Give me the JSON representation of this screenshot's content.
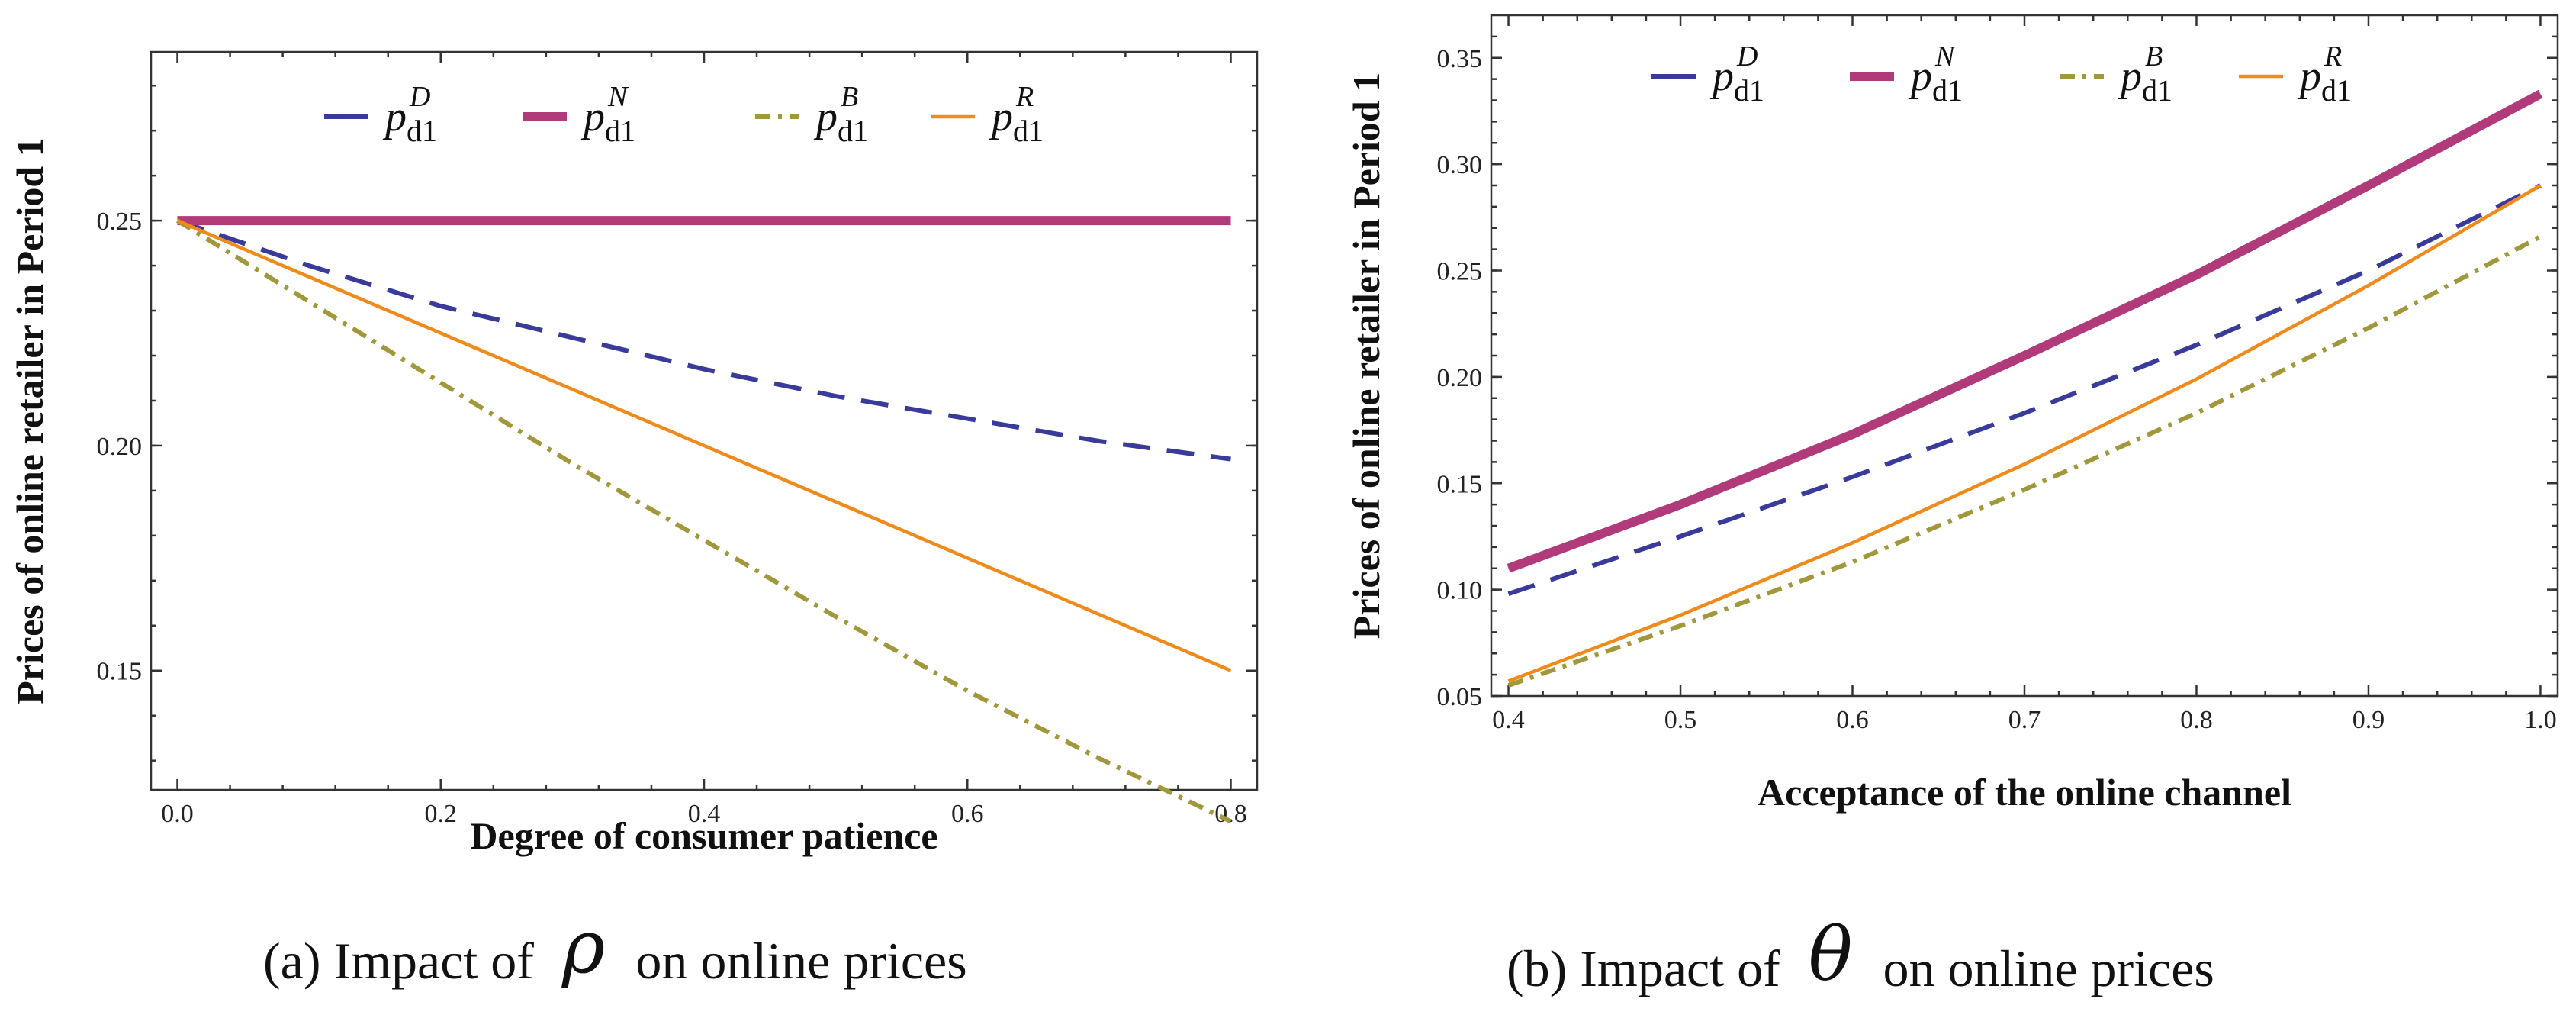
{
  "chart_data": [
    {
      "type": "line",
      "title": "",
      "xlabel": "Degree of consumer patience",
      "ylabel": "Prices of online retailer in Period 1",
      "xlim": [
        -0.02,
        0.82
      ],
      "ylim": [
        0.1235,
        0.2875
      ],
      "xticks": [
        0.0,
        0.2,
        0.4,
        0.6,
        0.8
      ],
      "xtick_labels": [
        "0.0",
        "0.2",
        "0.4",
        "0.6",
        "0.8"
      ],
      "yticks": [
        0.15,
        0.2,
        0.25
      ],
      "ytick_labels": [
        "0.15",
        "0.20",
        "0.25"
      ],
      "grid": false,
      "legend_position": "top",
      "caption_prefix": "(a) Impact of",
      "caption_symbol": "ρ",
      "caption_suffix": "on online prices",
      "series": [
        {
          "name": "p^D_d1",
          "base": "p",
          "sup": "D",
          "sub": "d1",
          "color": "#3a3a9a",
          "style": "dashed",
          "x": [
            0.0,
            0.1,
            0.2,
            0.3,
            0.4,
            0.5,
            0.6,
            0.7,
            0.8
          ],
          "y": [
            0.25,
            0.24,
            0.231,
            0.224,
            0.217,
            0.211,
            0.206,
            0.201,
            0.197
          ]
        },
        {
          "name": "p^N_d1",
          "base": "p",
          "sup": "N",
          "sub": "d1",
          "color": "#b03a7a",
          "style": "thick",
          "x": [
            0.0,
            0.8
          ],
          "y": [
            0.25,
            0.25
          ]
        },
        {
          "name": "p^B_d1",
          "base": "p",
          "sup": "B",
          "sub": "d1",
          "color": "#a0983a",
          "style": "dashdot",
          "x": [
            0.0,
            0.1,
            0.2,
            0.3,
            0.4,
            0.5,
            0.6,
            0.7,
            0.8
          ],
          "y": [
            0.25,
            0.232,
            0.214,
            0.196,
            0.179,
            0.162,
            0.1455,
            0.1305,
            0.1165
          ]
        },
        {
          "name": "p^R_d1",
          "base": "p",
          "sup": "R",
          "sub": "d1",
          "color": "#f08a1a",
          "style": "solid",
          "x": [
            0.0,
            0.8
          ],
          "y": [
            0.25,
            0.15
          ]
        }
      ]
    },
    {
      "type": "line",
      "title": "",
      "xlabel": "Acceptance of the online channel",
      "ylabel": "Prices of online retailer in Period 1",
      "xlim": [
        0.39,
        1.01
      ],
      "ylim": [
        0.05,
        0.37
      ],
      "xticks": [
        0.4,
        0.5,
        0.6,
        0.7,
        0.8,
        0.9,
        1.0
      ],
      "xtick_labels": [
        "0.4",
        "0.5",
        "0.6",
        "0.7",
        "0.8",
        "0.9",
        "1.0"
      ],
      "yticks": [
        0.05,
        0.1,
        0.15,
        0.2,
        0.25,
        0.3,
        0.35
      ],
      "ytick_labels": [
        "0.05",
        "0.10",
        "0.15",
        "0.20",
        "0.25",
        "0.30",
        "0.35"
      ],
      "grid": false,
      "legend_position": "top",
      "caption_prefix": "(b) Impact of",
      "caption_symbol": "θ",
      "caption_suffix": "on online prices",
      "series": [
        {
          "name": "p^D_d1",
          "base": "p",
          "sup": "D",
          "sub": "d1",
          "color": "#3a3a9a",
          "style": "dashed",
          "x": [
            0.4,
            0.5,
            0.6,
            0.7,
            0.8,
            0.9,
            1.0
          ],
          "y": [
            0.098,
            0.125,
            0.153,
            0.183,
            0.215,
            0.25,
            0.29
          ]
        },
        {
          "name": "p^N_d1",
          "base": "p",
          "sup": "N",
          "sub": "d1",
          "color": "#b03a7a",
          "style": "thick",
          "x": [
            0.4,
            0.5,
            0.6,
            0.7,
            0.8,
            0.9,
            1.0
          ],
          "y": [
            0.11,
            0.14,
            0.173,
            0.21,
            0.248,
            0.29,
            0.333
          ]
        },
        {
          "name": "p^B_d1",
          "base": "p",
          "sup": "B",
          "sub": "d1",
          "color": "#a0983a",
          "style": "dashdot",
          "x": [
            0.4,
            0.5,
            0.6,
            0.7,
            0.8,
            0.9,
            1.0
          ],
          "y": [
            0.055,
            0.083,
            0.113,
            0.147,
            0.183,
            0.223,
            0.266
          ]
        },
        {
          "name": "p^R_d1",
          "base": "p",
          "sup": "R",
          "sub": "d1",
          "color": "#f08a1a",
          "style": "solid",
          "x": [
            0.4,
            0.5,
            0.6,
            0.7,
            0.8,
            0.9,
            1.0
          ],
          "y": [
            0.057,
            0.088,
            0.122,
            0.159,
            0.199,
            0.243,
            0.29
          ]
        }
      ]
    }
  ]
}
